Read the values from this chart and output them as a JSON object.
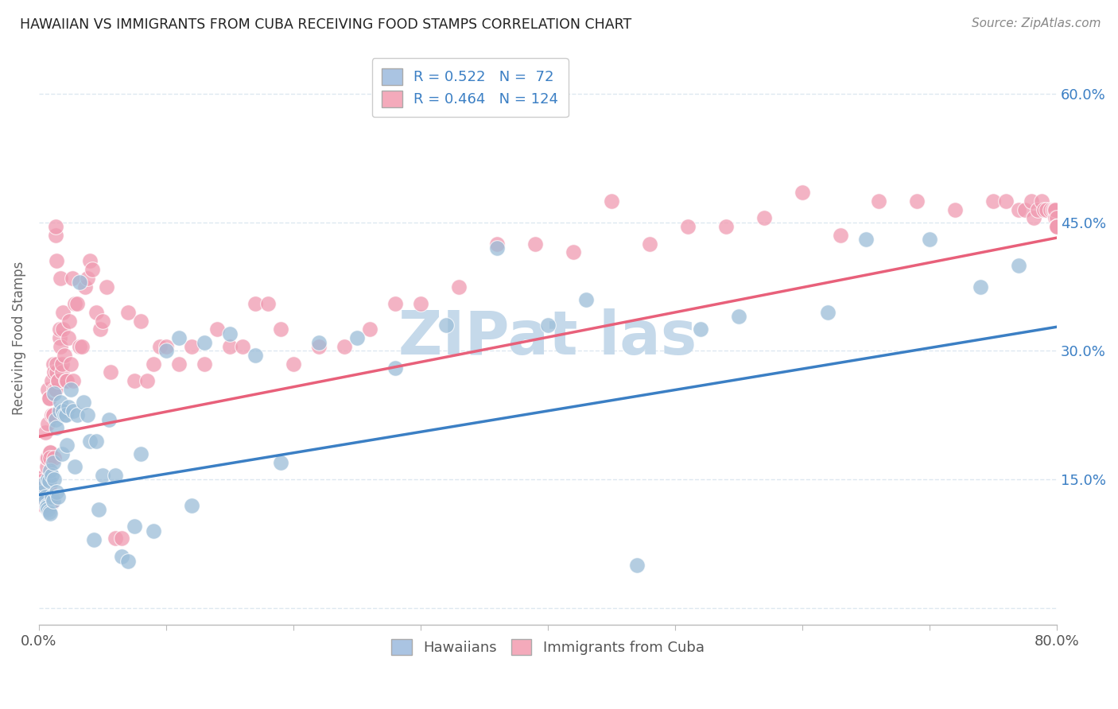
{
  "title": "HAWAIIAN VS IMMIGRANTS FROM CUBA RECEIVING FOOD STAMPS CORRELATION CHART",
  "source": "Source: ZipAtlas.com",
  "ylabel": "Receiving Food Stamps",
  "xlim": [
    0.0,
    0.8
  ],
  "ylim": [
    -0.02,
    0.65
  ],
  "xtick_vals": [
    0.0,
    0.1,
    0.2,
    0.3,
    0.4,
    0.5,
    0.6,
    0.7,
    0.8
  ],
  "ytick_vals": [
    0.0,
    0.15,
    0.3,
    0.45,
    0.6
  ],
  "ytick_labels_right": [
    "15.0%",
    "30.0%",
    "45.0%",
    "60.0%"
  ],
  "ytick_right_vals": [
    0.15,
    0.3,
    0.45,
    0.6
  ],
  "blue_R": 0.522,
  "blue_N": 72,
  "pink_R": 0.464,
  "pink_N": 124,
  "blue_color": "#aac4e2",
  "pink_color": "#f4aabb",
  "blue_line_color": "#3b7fc4",
  "pink_line_color": "#e8607a",
  "blue_scatter_color": "#9bbdd8",
  "pink_scatter_color": "#f09ab0",
  "watermark_color": "#c5d9ea",
  "background_color": "#ffffff",
  "legend_label_blue": "Hawaiians",
  "legend_label_pink": "Immigrants from Cuba",
  "grid_color": "#dde8f0",
  "blue_line_intercept": 0.132,
  "blue_line_slope": 0.245,
  "pink_line_intercept": 0.2,
  "pink_line_slope": 0.29,
  "blue_x": [
    0.002,
    0.003,
    0.004,
    0.005,
    0.005,
    0.006,
    0.006,
    0.007,
    0.007,
    0.008,
    0.008,
    0.009,
    0.009,
    0.01,
    0.01,
    0.011,
    0.011,
    0.012,
    0.012,
    0.013,
    0.014,
    0.014,
    0.015,
    0.016,
    0.017,
    0.018,
    0.019,
    0.02,
    0.021,
    0.022,
    0.023,
    0.025,
    0.027,
    0.028,
    0.03,
    0.032,
    0.035,
    0.038,
    0.04,
    0.043,
    0.045,
    0.047,
    0.05,
    0.055,
    0.06,
    0.065,
    0.07,
    0.075,
    0.08,
    0.09,
    0.1,
    0.11,
    0.12,
    0.13,
    0.15,
    0.17,
    0.19,
    0.22,
    0.25,
    0.28,
    0.32,
    0.36,
    0.4,
    0.43,
    0.47,
    0.52,
    0.55,
    0.62,
    0.65,
    0.7,
    0.74,
    0.77
  ],
  "blue_y": [
    0.14,
    0.135,
    0.145,
    0.13,
    0.125,
    0.12,
    0.118,
    0.115,
    0.15,
    0.148,
    0.112,
    0.11,
    0.16,
    0.155,
    0.13,
    0.125,
    0.17,
    0.25,
    0.15,
    0.22,
    0.21,
    0.135,
    0.13,
    0.23,
    0.24,
    0.18,
    0.23,
    0.225,
    0.225,
    0.19,
    0.235,
    0.255,
    0.23,
    0.165,
    0.225,
    0.38,
    0.24,
    0.225,
    0.195,
    0.08,
    0.195,
    0.115,
    0.155,
    0.22,
    0.155,
    0.06,
    0.055,
    0.095,
    0.18,
    0.09,
    0.3,
    0.315,
    0.12,
    0.31,
    0.32,
    0.295,
    0.17,
    0.31,
    0.315,
    0.28,
    0.33,
    0.42,
    0.33,
    0.36,
    0.05,
    0.325,
    0.34,
    0.345,
    0.43,
    0.43,
    0.375,
    0.4
  ],
  "pink_x": [
    0.001,
    0.002,
    0.002,
    0.003,
    0.003,
    0.004,
    0.005,
    0.005,
    0.006,
    0.006,
    0.007,
    0.007,
    0.007,
    0.008,
    0.008,
    0.008,
    0.009,
    0.009,
    0.009,
    0.01,
    0.01,
    0.01,
    0.011,
    0.011,
    0.011,
    0.012,
    0.012,
    0.012,
    0.013,
    0.013,
    0.013,
    0.014,
    0.014,
    0.014,
    0.015,
    0.015,
    0.016,
    0.016,
    0.017,
    0.017,
    0.018,
    0.018,
    0.019,
    0.019,
    0.02,
    0.021,
    0.022,
    0.023,
    0.024,
    0.025,
    0.026,
    0.027,
    0.028,
    0.03,
    0.032,
    0.034,
    0.036,
    0.038,
    0.04,
    0.042,
    0.045,
    0.048,
    0.05,
    0.053,
    0.056,
    0.06,
    0.065,
    0.07,
    0.075,
    0.08,
    0.085,
    0.09,
    0.095,
    0.1,
    0.11,
    0.12,
    0.13,
    0.14,
    0.15,
    0.16,
    0.17,
    0.18,
    0.19,
    0.2,
    0.22,
    0.24,
    0.26,
    0.28,
    0.3,
    0.33,
    0.36,
    0.39,
    0.42,
    0.45,
    0.48,
    0.51,
    0.54,
    0.57,
    0.6,
    0.63,
    0.66,
    0.69,
    0.72,
    0.75,
    0.76,
    0.77,
    0.775,
    0.78,
    0.782,
    0.785,
    0.788,
    0.79,
    0.792,
    0.795,
    0.797,
    0.798,
    0.799,
    0.799,
    0.8,
    0.8,
    0.8,
    0.8,
    0.8,
    0.8
  ],
  "pink_y": [
    0.15,
    0.152,
    0.148,
    0.145,
    0.132,
    0.12,
    0.13,
    0.205,
    0.165,
    0.175,
    0.175,
    0.215,
    0.255,
    0.245,
    0.245,
    0.142,
    0.182,
    0.182,
    0.175,
    0.122,
    0.225,
    0.265,
    0.285,
    0.225,
    0.225,
    0.275,
    0.255,
    0.175,
    0.255,
    0.435,
    0.445,
    0.275,
    0.285,
    0.405,
    0.265,
    0.265,
    0.315,
    0.325,
    0.305,
    0.385,
    0.275,
    0.285,
    0.325,
    0.345,
    0.295,
    0.265,
    0.265,
    0.315,
    0.335,
    0.285,
    0.385,
    0.265,
    0.355,
    0.355,
    0.305,
    0.305,
    0.375,
    0.385,
    0.405,
    0.395,
    0.345,
    0.325,
    0.335,
    0.375,
    0.275,
    0.082,
    0.082,
    0.345,
    0.265,
    0.335,
    0.265,
    0.285,
    0.305,
    0.305,
    0.285,
    0.305,
    0.285,
    0.325,
    0.305,
    0.305,
    0.355,
    0.355,
    0.325,
    0.285,
    0.305,
    0.305,
    0.325,
    0.355,
    0.355,
    0.375,
    0.425,
    0.425,
    0.415,
    0.475,
    0.425,
    0.445,
    0.445,
    0.455,
    0.485,
    0.435,
    0.475,
    0.475,
    0.465,
    0.475,
    0.475,
    0.465,
    0.465,
    0.475,
    0.455,
    0.465,
    0.475,
    0.465,
    0.465,
    0.465,
    0.465,
    0.465,
    0.455,
    0.465,
    0.455,
    0.445,
    0.445,
    0.445,
    0.445,
    0.445
  ]
}
